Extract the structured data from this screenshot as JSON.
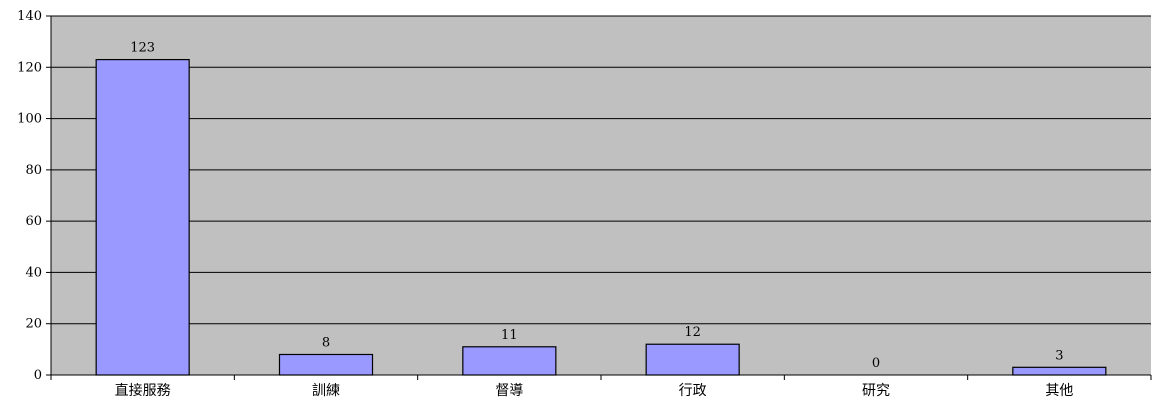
{
  "chart_data": {
    "type": "bar",
    "title": "",
    "xlabel": "",
    "ylabel": "",
    "categories": [
      "直接服務",
      "訓練",
      "督導",
      "行政",
      "研究",
      "其他"
    ],
    "values": [
      123,
      8,
      11,
      12,
      0,
      3
    ],
    "ylim": [
      0,
      140
    ],
    "yticks": [
      0,
      20,
      40,
      60,
      80,
      100,
      120,
      140
    ],
    "grid": true,
    "legend": "none",
    "colors": {
      "plot_background": "#c0c0c0",
      "bar_fill": "#9999ff",
      "bar_stroke": "#000000",
      "gridline": "#000000"
    }
  }
}
